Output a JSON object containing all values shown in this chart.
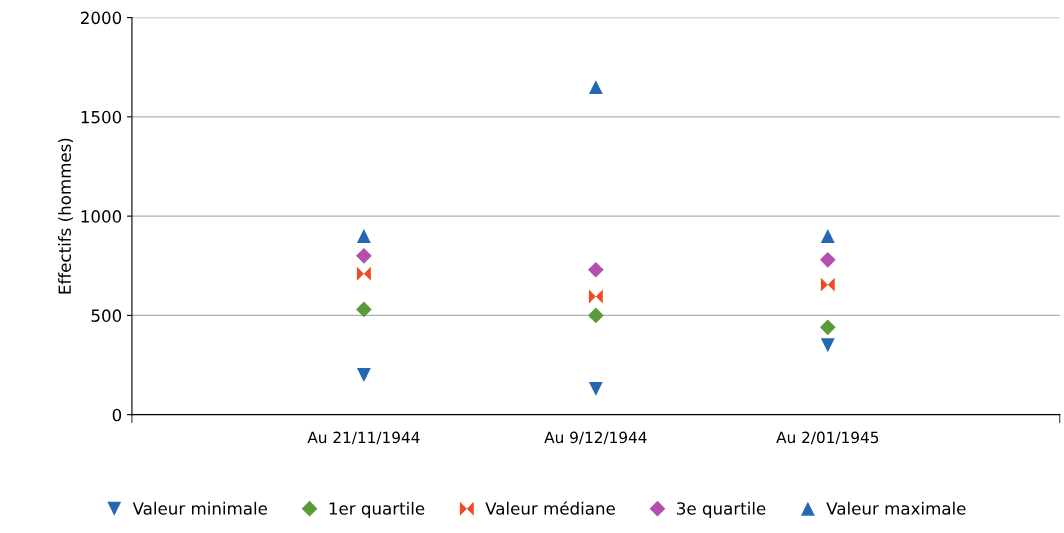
{
  "chart_data": {
    "type": "scatter",
    "ylabel": "Effectifs (hommes)",
    "categories": [
      "Au 21/11/1944",
      "Au 9/12/1944",
      "Au 2/01/1945"
    ],
    "series": [
      {
        "name": "Valeur minimale",
        "color": "#2468b4",
        "marker": "triangle-down",
        "values": [
          200,
          130,
          350
        ]
      },
      {
        "name": "1er quartile",
        "color": "#5a9a3a",
        "marker": "diamond",
        "values": [
          530,
          500,
          440
        ]
      },
      {
        "name": "Valeur médiane",
        "color": "#f04a25",
        "values": [
          710,
          595,
          655
        ]
      },
      {
        "name": "3e quartile",
        "color": "#b44fae",
        "marker": "diamond",
        "values": [
          800,
          730,
          780
        ]
      },
      {
        "name": "Valeur maximale",
        "color": "#2468b4",
        "marker": "triangle",
        "values": [
          900,
          1650,
          900
        ]
      }
    ],
    "ylim": [
      0,
      2000
    ],
    "yticks": [
      0,
      500,
      1000,
      1500,
      2000
    ],
    "grid": "y",
    "legend": "bottom"
  }
}
